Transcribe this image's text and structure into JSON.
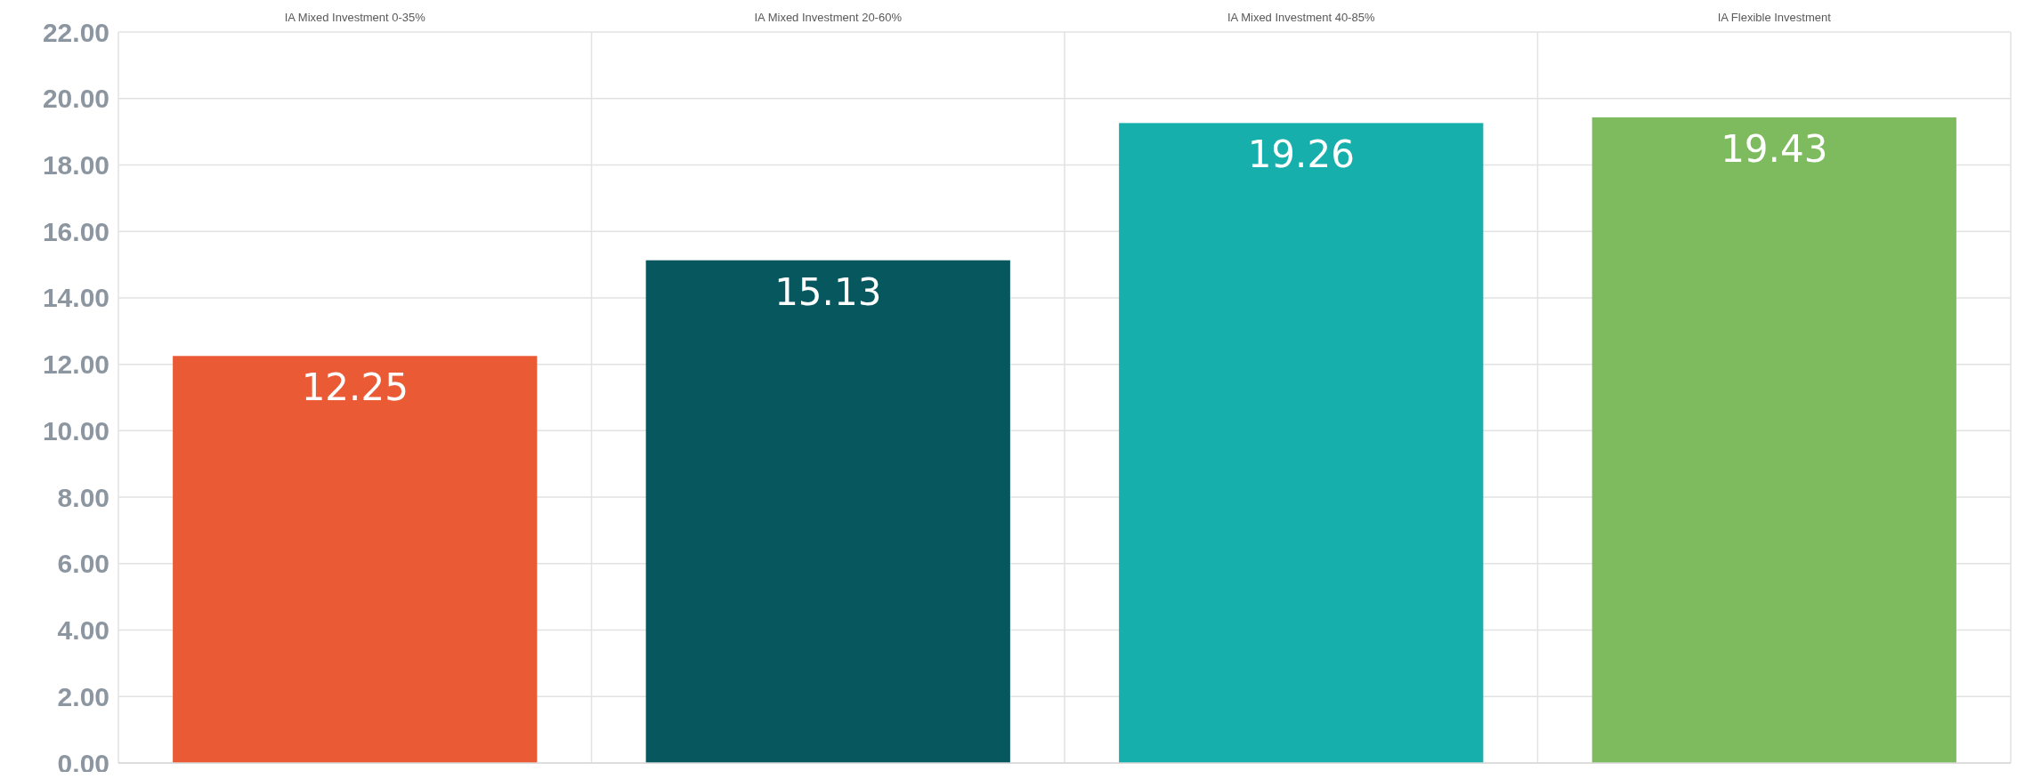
{
  "chart_data": {
    "type": "bar",
    "categories": [
      "IA Mixed Investment 0-35%",
      "IA Mixed Investment 20-60%",
      "IA Mixed Investment 40-85%",
      "IA Flexible Investment"
    ],
    "values": [
      12.25,
      15.13,
      19.26,
      19.43
    ],
    "colors": [
      "#e95a35",
      "#06585e",
      "#17afac",
      "#7dbb5e"
    ],
    "ylim": [
      0,
      22
    ],
    "yticks": [
      {
        "value": 0,
        "label": "0.00"
      },
      {
        "value": 2,
        "label": "2.00"
      },
      {
        "value": 4,
        "label": "4.00"
      },
      {
        "value": 6,
        "label": "6.00"
      },
      {
        "value": 8,
        "label": "8.00"
      },
      {
        "value": 10,
        "label": "10.00"
      },
      {
        "value": 12,
        "label": "12.00"
      },
      {
        "value": 14,
        "label": "14.00"
      },
      {
        "value": 16,
        "label": "16.00"
      },
      {
        "value": 18,
        "label": "18.00"
      },
      {
        "value": 20,
        "label": "20.00"
      },
      {
        "value": 22,
        "label": "22.00"
      }
    ],
    "grid": true,
    "data_labels": true
  }
}
